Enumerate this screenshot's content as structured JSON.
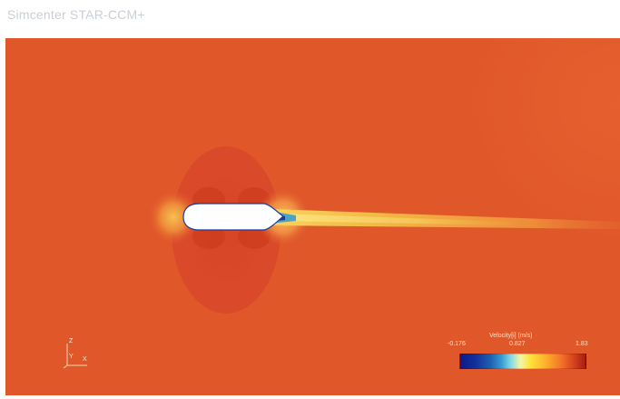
{
  "app": {
    "title": "Simcenter STAR-CCM+"
  },
  "scene": {
    "background_color": "#e0582a",
    "hull_color": "#ffffff",
    "wake_color": "#f2c238",
    "stagnation_color": "#1a3a9a"
  },
  "axes_triad": {
    "z_label": "Z",
    "y_label": "Y",
    "x_label": "X"
  },
  "legend": {
    "title": "Velocity[i] (m/s)",
    "min_label": "-0.176",
    "mid_label": "0.827",
    "max_label": "1.83",
    "min_value": -0.176,
    "mid_value": 0.827,
    "max_value": 1.83,
    "colormap": [
      "#0c1a8a",
      "#1e5fb0",
      "#7ed7e4",
      "#f5f5a8",
      "#ffe23a",
      "#ffb12a",
      "#f3772a",
      "#a51f12"
    ]
  }
}
